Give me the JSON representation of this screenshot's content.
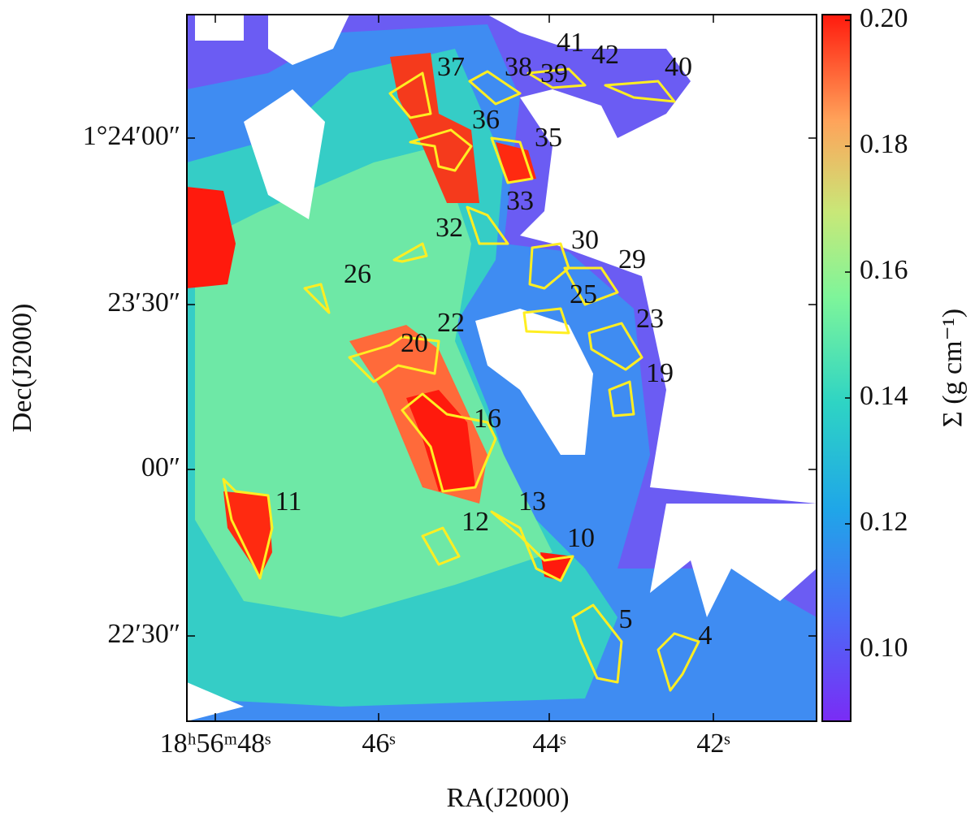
{
  "image": {
    "x_axis": {
      "label": "RA(J2000)",
      "ticks": [
        "18ʰ56ᵐ48ˢ",
        "46ˢ",
        "44ˢ",
        "42ˢ"
      ]
    },
    "y_axis": {
      "label": "Dec(J2000)",
      "ticks": [
        "1°24′00″",
        "23′30″",
        "00″",
        "22′30″"
      ]
    },
    "colorbar": {
      "label": "Σ (g cm⁻¹)",
      "ticks": [
        "0.20",
        "0.18",
        "0.16",
        "0.14",
        "0.12",
        "0.10"
      ]
    },
    "sources": [
      "37",
      "38",
      "39",
      "41",
      "42",
      "40",
      "36",
      "35",
      "33",
      "32",
      "30",
      "29",
      "26",
      "25",
      "23",
      "22",
      "20",
      "19",
      "16",
      "11",
      "13",
      "12",
      "10",
      "5",
      "4"
    ]
  }
}
